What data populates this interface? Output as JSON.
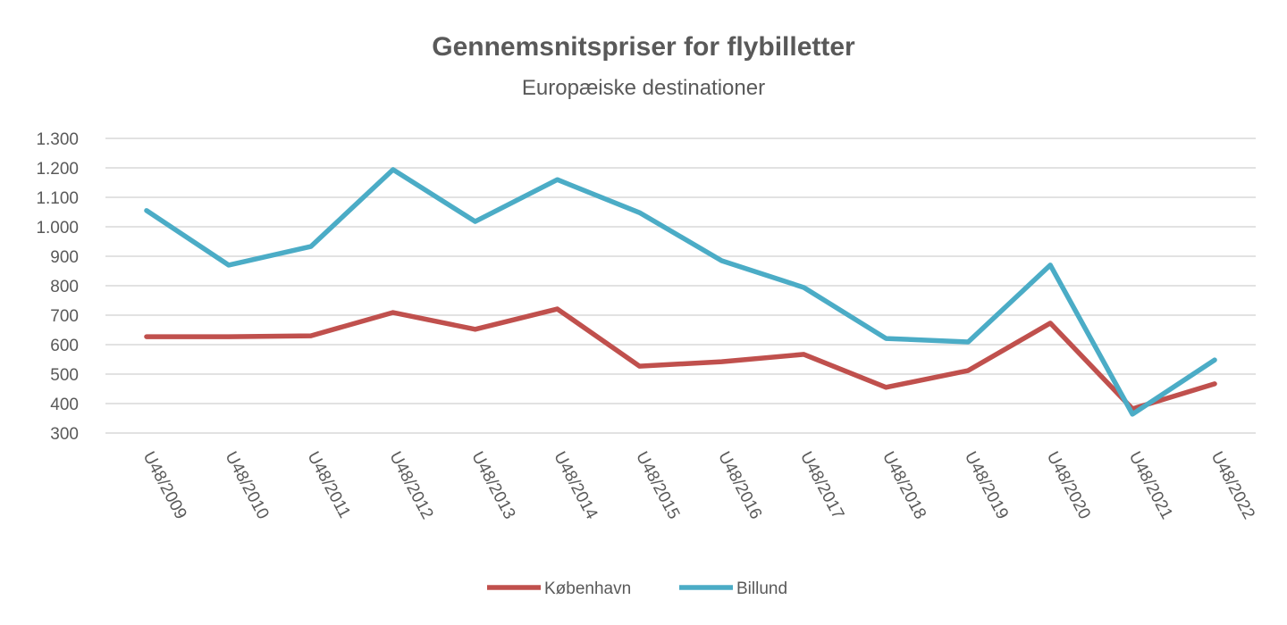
{
  "chart_data": {
    "type": "line",
    "title": "Gennemsnitspriser for flybilletter",
    "subtitle": "Europæiske destinationer",
    "xlabel": "",
    "ylabel": "",
    "ylim": [
      300,
      1300
    ],
    "yticks": [
      300,
      400,
      500,
      600,
      700,
      800,
      900,
      1000,
      1100,
      1200,
      1300
    ],
    "ytick_labels": [
      "300",
      "400",
      "500",
      "600",
      "700",
      "800",
      "900",
      "1.000",
      "1.100",
      "1.200",
      "1.300"
    ],
    "grid": true,
    "legend_position": "bottom",
    "categories": [
      "U48/2009",
      "U48/2010",
      "U48/2011",
      "U48/2012",
      "U48/2013",
      "U48/2014",
      "U48/2015",
      "U48/2016",
      "U48/2017",
      "U48/2018",
      "U48/2019",
      "U48/2020",
      "U48/2021",
      "U48/2022"
    ],
    "series": [
      {
        "name": "København",
        "color": "#c0504d",
        "values": [
          627,
          627,
          630,
          709,
          652,
          721,
          527,
          542,
          567,
          455,
          512,
          673,
          382,
          467
        ]
      },
      {
        "name": "Billund",
        "color": "#4bacc6",
        "values": [
          1055,
          870,
          933,
          1194,
          1018,
          1160,
          1048,
          885,
          794,
          621,
          609,
          870,
          364,
          548
        ]
      }
    ]
  }
}
